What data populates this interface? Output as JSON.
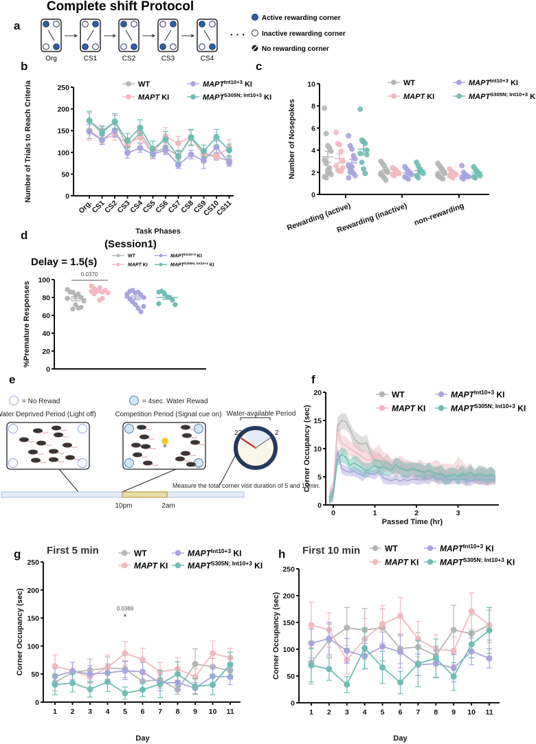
{
  "figure_title": "Complete shift Protocol",
  "panel_labels": {
    "a": "a",
    "b": "b",
    "c": "c",
    "d": "d",
    "e": "e",
    "f": "f",
    "g": "g",
    "h": "h"
  },
  "colors": {
    "WT": "#b5b5b5",
    "MAPT KI": "#f0b9bf",
    "MAPT Int10+3 KI": "#a9a4de",
    "MAPT S305N; Int10+3 KI": "#6fbdb3",
    "active": "#2e5fa8"
  },
  "legend": [
    {
      "label": "WT"
    },
    {
      "italic": "MAPT",
      "suffix": " KI"
    },
    {
      "italic": "MAPT",
      "sup": "Int10+3",
      "suffix": " KI"
    },
    {
      "italic": "MAPT",
      "sup": "S305N; Int10+3",
      "suffix": " KI"
    }
  ],
  "panel_a": {
    "stages": [
      "Org",
      "CS1",
      "CS2",
      "CS3",
      "CS4"
    ],
    "ellipsis": "· · ·",
    "legend": [
      "Active rewarding corner",
      "Inactive rewarding corner",
      "No rewarding corner"
    ]
  },
  "panel_e": {
    "no_reward": "= No Rewad",
    "water_reward": "= 4sec. Water Rewad",
    "deprived": "Water Deprived Period (Light off)",
    "competition": "Competition Period (Signal cue on)",
    "available": "Water-available Period",
    "clock_left": "22",
    "clock_right": "2",
    "measure": "Measure the total corner visit duration of 5 and 10min.",
    "t_start": "10pm",
    "t_end": "2am"
  },
  "chart_data": [
    {
      "id": "b",
      "type": "line",
      "title": "",
      "xlabel": "Task Phases",
      "ylabel": "Number of Trials to Reach Criteria",
      "categories": [
        "Org.",
        "CS1",
        "CS2",
        "CS3",
        "CS4",
        "CS5",
        "CS6",
        "CS7",
        "CS8",
        "CS9",
        "CS10",
        "CS11"
      ],
      "ylim": [
        0,
        250
      ],
      "yticks": [
        0,
        50,
        100,
        150,
        200,
        250
      ],
      "series": [
        {
          "name": "WT",
          "values": [
            173,
            150,
            170,
            115,
            145,
            100,
            110,
            92,
            133,
            95,
            90,
            80
          ],
          "sem": [
            18,
            12,
            15,
            12,
            14,
            10,
            12,
            10,
            18,
            10,
            8,
            8
          ]
        },
        {
          "name": "MAPT KI",
          "values": [
            150,
            130,
            140,
            120,
            135,
            97,
            137,
            121,
            135,
            98,
            92,
            111
          ],
          "sem": [
            22,
            10,
            12,
            14,
            12,
            12,
            20,
            16,
            18,
            10,
            8,
            18
          ]
        },
        {
          "name": "MAPT Int10+3 KI",
          "values": [
            148,
            128,
            150,
            99,
            110,
            96,
            105,
            71,
            95,
            81,
            112,
            76
          ],
          "sem": [
            16,
            10,
            14,
            12,
            10,
            10,
            10,
            8,
            10,
            18,
            14,
            8
          ]
        },
        {
          "name": "MAPT S305N; Int10+3 KI",
          "values": [
            173,
            145,
            171,
            127,
            157,
            108,
            130,
            90,
            135,
            103,
            135,
            105
          ],
          "sem": [
            22,
            14,
            18,
            16,
            18,
            18,
            18,
            14,
            18,
            14,
            18,
            14
          ]
        }
      ]
    },
    {
      "id": "c",
      "type": "scatter",
      "xlabel": "",
      "ylabel": "Number of  Nosepokes",
      "categories": [
        "Rewarding (active)",
        "Rewarding (inactive)",
        "non-rewarding"
      ],
      "ylim": [
        0,
        10
      ],
      "yticks": [
        0,
        2,
        4,
        6,
        8,
        10
      ],
      "series": [
        {
          "name": "WT",
          "groups": [
            [
              7.8,
              5.5,
              4.4,
              4.2,
              3.9,
              3.1,
              2.8,
              2.2,
              2.0,
              1.8,
              1.6,
              1.5,
              1.9,
              2.4
            ],
            [
              3.0,
              2.8,
              2.6,
              2.3,
              2.1,
              1.9,
              1.7,
              1.5,
              1.3,
              2.0,
              1.8
            ],
            [
              2.8,
              2.6,
              2.4,
              2.2,
              2.0,
              1.8,
              1.6,
              1.5,
              1.4,
              1.9,
              1.7
            ]
          ],
          "mean": [
            3.4,
            2.1,
            2.05
          ],
          "sem": [
            0.5,
            0.15,
            0.15
          ]
        },
        {
          "name": "MAPT KI",
          "groups": [
            [
              5.6,
              4.6,
              4.5,
              3.9,
              3.0,
              2.6,
              2.2,
              2.1,
              2.1,
              2.4
            ],
            [
              2.4,
              2.3,
              2.1,
              2.0,
              1.9,
              1.8,
              1.7,
              2.2
            ],
            [
              2.3,
              2.1,
              2.0,
              1.9,
              1.8,
              1.7,
              1.6,
              1.5
            ]
          ],
          "mean": [
            3.25,
            2.0,
            1.9
          ],
          "sem": [
            0.4,
            0.1,
            0.1
          ]
        },
        {
          "name": "MAPT Int10+3 KI",
          "groups": [
            [
              5.3,
              4.4,
              4.1,
              3.5,
              3.2,
              2.6,
              2.3,
              2.1,
              1.9,
              1.7,
              1.5,
              2.0,
              2.5
            ],
            [
              2.5,
              2.3,
              2.1,
              1.9,
              1.8,
              1.6,
              1.5,
              1.4,
              2.0
            ],
            [
              2.6,
              2.0,
              1.8,
              1.7,
              1.6,
              1.5,
              1.4,
              1.7
            ]
          ],
          "mean": [
            2.85,
            1.95,
            1.75
          ],
          "sem": [
            0.35,
            0.1,
            0.1
          ]
        },
        {
          "name": "MAPT S305N; Int10+3 KI",
          "groups": [
            [
              7.7,
              4.9,
              4.8,
              4.6,
              4.0,
              3.7,
              2.9,
              2.3,
              1.9,
              3.6
            ],
            [
              2.9,
              2.6,
              2.3,
              2.1,
              1.9,
              1.7,
              1.5,
              2.0
            ],
            [
              2.5,
              2.3,
              2.1,
              1.9,
              1.7,
              1.6,
              1.5,
              2.0
            ]
          ],
          "mean": [
            4.1,
            2.15,
            2.0
          ],
          "sem": [
            0.5,
            0.15,
            0.12
          ]
        }
      ]
    },
    {
      "id": "d",
      "type": "scatter",
      "title": "(Session1)",
      "subtitle": "Delay = 1.5(s)",
      "ylabel": "%Premature Responses",
      "ylim": [
        0,
        100
      ],
      "yticks": [
        0,
        20,
        40,
        60,
        80,
        100
      ],
      "annotation": {
        "text": "0.0370",
        "between": [
          "WT",
          "MAPT KI"
        ]
      },
      "series": [
        {
          "name": "WT",
          "values": [
            89,
            86,
            86,
            82,
            84,
            80,
            76,
            79,
            86,
            67,
            72,
            68,
            69
          ],
          "mean": 78.5,
          "sem": 2.2
        },
        {
          "name": "MAPT KI",
          "values": [
            93,
            90,
            88,
            91,
            86,
            88,
            85,
            87,
            84,
            87,
            77,
            79
          ],
          "mean": 86.5,
          "sem": 1.4
        },
        {
          "name": "MAPT Int10+3 KI",
          "values": [
            84,
            87,
            88,
            85,
            86,
            83,
            80,
            82,
            78,
            75,
            72,
            68,
            64,
            70
          ],
          "mean": 79.5,
          "sem": 2.0
        },
        {
          "name": "MAPT S305N; Int10+3 KI",
          "values": [
            86,
            87,
            85,
            81,
            80,
            77,
            72,
            73
          ],
          "mean": 80,
          "sem": 2.0
        }
      ]
    },
    {
      "id": "f",
      "type": "area",
      "xlabel": "Passed Time (hr)",
      "ylabel": "Corner Occupancy (sec)",
      "ylim": [
        0,
        20
      ],
      "yticks": [
        0,
        5,
        10,
        15,
        20
      ],
      "xlim": [
        -0.17,
        3.9
      ],
      "xticks": [
        0,
        1,
        2,
        3
      ],
      "x_start": -0.1,
      "x_step": 0.1,
      "series": [
        {
          "name": "WT",
          "sem": 1.6,
          "values": [
            1.2,
            2.5,
            14,
            15,
            14.8,
            13.5,
            11.8,
            11,
            10.8,
            11,
            9.2,
            8,
            7.8,
            7.2,
            7.5,
            6.8,
            7,
            6.6,
            6.3,
            6.5,
            6.2,
            6,
            5.8,
            5.6,
            6,
            5.2,
            5.5,
            5.3,
            5,
            5.2,
            5.5,
            5,
            5.2,
            4.8,
            5.4,
            5,
            5.1,
            4.9,
            5,
            5.2,
            4.8
          ]
        },
        {
          "name": "MAPT KI",
          "sem": 1.8,
          "values": [
            1.5,
            3,
            13,
            11,
            10.5,
            10,
            9.5,
            9,
            8.5,
            8,
            8,
            8.5,
            9,
            8,
            7.5,
            7,
            6.5,
            7,
            6.8,
            6.2,
            6.5,
            6,
            6.3,
            6,
            5.8,
            6.5,
            6.5,
            5.5,
            6,
            5.6,
            6,
            7,
            6,
            5.5,
            5.8,
            5,
            5.5,
            5,
            5.2,
            5,
            4.8
          ]
        },
        {
          "name": "MAPT Int10+3 KI",
          "sem": 1.0,
          "values": [
            0.8,
            2,
            9.5,
            6.5,
            6,
            5.8,
            6,
            5.5,
            5.2,
            5.8,
            5.5,
            5.4,
            6,
            4.8,
            4.5,
            4.3,
            4.6,
            4.2,
            4.5,
            4.3,
            4.6,
            4.5,
            4.4,
            4.8,
            4.5,
            5,
            4.6,
            4.5,
            4.8,
            4.4,
            4.5,
            4.6,
            4.5,
            4.5,
            4.2,
            4.6,
            4.5,
            4.4,
            4.5,
            4.6,
            4.5
          ]
        },
        {
          "name": "MAPT S305N; Int10+3 KI",
          "sem": 1.5,
          "values": [
            0.7,
            2,
            8,
            9,
            8.5,
            7,
            7.5,
            7,
            6.5,
            6,
            6.5,
            7,
            6.5,
            6.8,
            6.5,
            6.2,
            7.2,
            6.5,
            6.3,
            6,
            6.5,
            6.2,
            6,
            5.8,
            6.2,
            5.8,
            5.5,
            5.6,
            5,
            5.2,
            5.5,
            5,
            5.6,
            5.3,
            5.8,
            5.2,
            5.6,
            5.4,
            5.2,
            5.5,
            5
          ]
        }
      ]
    },
    {
      "id": "g",
      "type": "line",
      "title": "First 5 min",
      "xlabel": "Day",
      "ylabel": "Corner Occupancy (sec)",
      "x": [
        1,
        2,
        3,
        4,
        5,
        6,
        7,
        8,
        9,
        10,
        11
      ],
      "ylim": [
        0,
        250
      ],
      "yticks": [
        0,
        50,
        100,
        150,
        200,
        250
      ],
      "annotation": {
        "text": "0.0369",
        "mark": "*",
        "x": 5
      },
      "series": [
        {
          "name": "WT",
          "values": [
            35,
            53,
            57,
            61,
            59,
            37,
            40,
            22,
            68,
            63,
            56
          ],
          "sem": [
            15,
            18,
            20,
            20,
            15,
            12,
            15,
            8,
            27,
            15,
            15
          ]
        },
        {
          "name": "MAPT KI",
          "values": [
            64,
            56,
            45,
            62,
            87,
            76,
            54,
            59,
            45,
            87,
            79
          ],
          "sem": [
            20,
            15,
            12,
            22,
            21,
            20,
            17,
            20,
            15,
            22,
            17
          ]
        },
        {
          "name": "MAPT Int10+3 KI",
          "values": [
            46,
            55,
            50,
            52,
            56,
            54,
            34,
            35,
            25,
            46,
            45
          ],
          "sem": [
            14,
            16,
            15,
            16,
            16,
            17,
            14,
            12,
            10,
            18,
            14
          ]
        },
        {
          "name": "MAPT S305N; Int10+3 KI",
          "values": [
            31,
            34,
            23,
            36,
            16,
            22,
            32,
            50,
            28,
            31,
            67
          ],
          "sem": [
            18,
            16,
            14,
            17,
            11,
            12,
            24,
            22,
            14,
            18,
            22
          ]
        }
      ]
    },
    {
      "id": "h",
      "type": "line",
      "title": "First 10 min",
      "xlabel": "Day",
      "ylabel": "Corner Occupancy (sec)",
      "x": [
        1,
        2,
        3,
        4,
        5,
        6,
        7,
        8,
        9,
        10,
        11
      ],
      "ylim": [
        0,
        250
      ],
      "yticks": [
        0,
        50,
        100,
        150,
        200,
        250
      ],
      "series": [
        {
          "name": "WT",
          "values": [
            75,
            117,
            140,
            136,
            140,
            101,
            104,
            88,
            136,
            129,
            145
          ],
          "sem": [
            40,
            30,
            38,
            40,
            35,
            28,
            27,
            18,
            46,
            35,
            28
          ]
        },
        {
          "name": "MAPT KI",
          "values": [
            145,
            136,
            80,
            119,
            147,
            162,
            119,
            100,
            97,
            171,
            145
          ],
          "sem": [
            42,
            32,
            27,
            38,
            35,
            35,
            33,
            27,
            26,
            34,
            33
          ]
        },
        {
          "name": "MAPT Int10+3 KI",
          "values": [
            111,
            120,
            97,
            87,
            105,
            95,
            71,
            73,
            65,
            96,
            83
          ],
          "sem": [
            27,
            30,
            23,
            24,
            27,
            30,
            20,
            25,
            26,
            25,
            18
          ]
        },
        {
          "name": "MAPT S305N; Int10+3 KI",
          "values": [
            70,
            63,
            34,
            102,
            66,
            38,
            73,
            83,
            49,
            109,
            135
          ],
          "sem": [
            31,
            21,
            15,
            38,
            30,
            21,
            43,
            36,
            26,
            25,
            43
          ]
        }
      ]
    }
  ]
}
